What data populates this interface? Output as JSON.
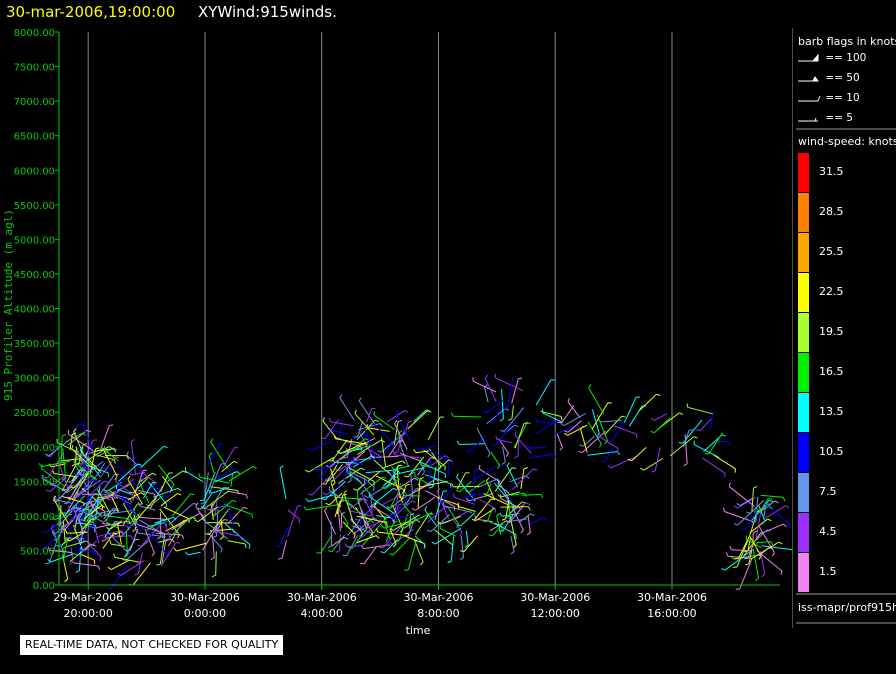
{
  "header": {
    "date_label": "30-mar-2006,19:00:00",
    "product_label": "XYWind:915winds."
  },
  "legend": {
    "flags_title": "barb flags in knots",
    "flags": [
      "== 100",
      "== 50",
      "== 10",
      "== 5"
    ],
    "speed_title": "wind-speed: knots",
    "source": "iss-mapr/prof915h"
  },
  "notice": "REAL-TIME DATA, NOT CHECKED FOR QUALITY",
  "colors": {
    "background": "#000000",
    "axis": "#00cc00",
    "gridline": "#888888",
    "title_date": "#ffff00"
  },
  "chart_data": {
    "type": "scatter",
    "subtype": "wind-barb time-height",
    "xlabel": "time",
    "ylabel": "915 Profiler Altitude (m agl)",
    "ylim": [
      0,
      8000
    ],
    "y_ticks": [
      "0.00",
      "500.00",
      "1000.00",
      "1500.00",
      "2000.00",
      "2500.00",
      "3000.00",
      "3500.00",
      "4000.00",
      "4500.00",
      "5000.00",
      "5500.00",
      "6000.00",
      "6500.00",
      "7000.00",
      "7500.00",
      "8000.00"
    ],
    "x_ticks": [
      {
        "hour": 20,
        "date": "29-Mar-2006",
        "time": "20:00:00"
      },
      {
        "hour": 24,
        "date": "30-Mar-2006",
        "time": "0:00:00"
      },
      {
        "hour": 28,
        "date": "30-Mar-2006",
        "time": "4:00:00"
      },
      {
        "hour": 32,
        "date": "30-Mar-2006",
        "time": "8:00:00"
      },
      {
        "hour": 36,
        "date": "30-Mar-2006",
        "time": "12:00:00"
      },
      {
        "hour": 40,
        "date": "30-Mar-2006",
        "time": "16:00:00"
      }
    ],
    "xlim_hours": [
      19.0,
      43.7
    ],
    "grid": "vertical at x ticks",
    "legend_position": "right",
    "speed_colorbar": [
      {
        "label": "31.5",
        "color": "#ff0000"
      },
      {
        "label": "28.5",
        "color": "#ff8000"
      },
      {
        "label": "25.5",
        "color": "#ffa500"
      },
      {
        "label": "22.5",
        "color": "#ffff00"
      },
      {
        "label": "19.5",
        "color": "#a8ff30"
      },
      {
        "label": "16.5",
        "color": "#00ee00"
      },
      {
        "label": "13.5",
        "color": "#00ffff"
      },
      {
        "label": "10.5",
        "color": "#0000ff"
      },
      {
        "label": "7.5",
        "color": "#6495ed"
      },
      {
        "label": "4.5",
        "color": "#9b30ff"
      },
      {
        "label": "1.5",
        "color": "#ee82ee"
      }
    ],
    "barb_clusters": [
      {
        "t_start": 19.0,
        "t_end": 19.8,
        "alt_low": 300,
        "alt_high": 2100,
        "count": 90
      },
      {
        "t_start": 19.8,
        "t_end": 20.6,
        "alt_low": 500,
        "alt_high": 2000,
        "count": 70
      },
      {
        "t_start": 21.0,
        "t_end": 22.9,
        "alt_low": 250,
        "alt_high": 1800,
        "count": 85
      },
      {
        "t_start": 23.8,
        "t_end": 24.9,
        "alt_low": 450,
        "alt_high": 1750,
        "count": 45
      },
      {
        "t_start": 26.4,
        "t_end": 27.0,
        "alt_low": 500,
        "alt_high": 1500,
        "count": 5
      },
      {
        "t_start": 28.3,
        "t_end": 31.3,
        "alt_low": 550,
        "alt_high": 2400,
        "count": 170
      },
      {
        "t_start": 31.3,
        "t_end": 32.0,
        "alt_low": 800,
        "alt_high": 2200,
        "count": 30
      },
      {
        "t_start": 32.3,
        "t_end": 35.1,
        "alt_low": 700,
        "alt_high": 1600,
        "count": 70
      },
      {
        "t_start": 33.3,
        "t_end": 35.0,
        "alt_low": 1900,
        "alt_high": 3000,
        "count": 25
      },
      {
        "t_start": 35.0,
        "t_end": 39.3,
        "alt_low": 1800,
        "alt_high": 2600,
        "count": 35
      },
      {
        "t_start": 39.5,
        "t_end": 42.0,
        "alt_low": 1800,
        "alt_high": 2500,
        "count": 18
      },
      {
        "t_start": 42.6,
        "t_end": 43.2,
        "alt_low": 300,
        "alt_high": 1300,
        "count": 45
      }
    ]
  }
}
